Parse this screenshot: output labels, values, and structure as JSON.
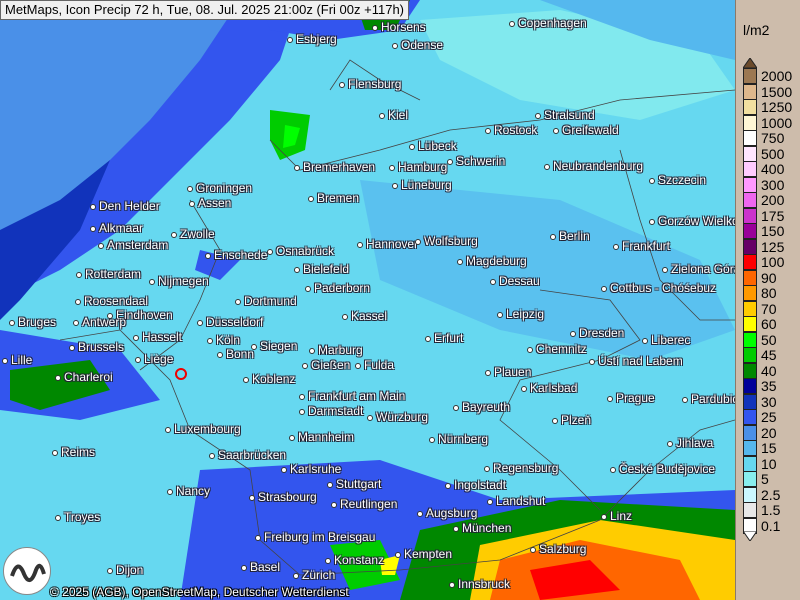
{
  "title": "MetMaps, Icon Precip 72 h, Tue, 08. Jul. 2025 21:00z (Fri 00z +117h)",
  "copyright": "© 2025 (AGB), OpenStreetMap, Deutscher Wetterdienst",
  "logo_text": "METMAPS",
  "legend": {
    "unit": "l/m2",
    "levels": [
      {
        "label": "2000",
        "color": "#9c7852"
      },
      {
        "label": "1500",
        "color": "#dfb88c"
      },
      {
        "label": "1250",
        "color": "#f2dfa0"
      },
      {
        "label": "1000",
        "color": "#fff6d6"
      },
      {
        "label": "750",
        "color": "#ffffff"
      },
      {
        "label": "500",
        "color": "#ffe6ff"
      },
      {
        "label": "400",
        "color": "#ffccff"
      },
      {
        "label": "300",
        "color": "#ff99ff"
      },
      {
        "label": "200",
        "color": "#ee66ee"
      },
      {
        "label": "175",
        "color": "#cc33cc"
      },
      {
        "label": "150",
        "color": "#990099"
      },
      {
        "label": "125",
        "color": "#660066"
      },
      {
        "label": "100",
        "color": "#ff0000"
      },
      {
        "label": "90",
        "color": "#ff6600"
      },
      {
        "label": "80",
        "color": "#ff9900"
      },
      {
        "label": "70",
        "color": "#ffcc00"
      },
      {
        "label": "60",
        "color": "#ffff00"
      },
      {
        "label": "50",
        "color": "#00ff00"
      },
      {
        "label": "45",
        "color": "#00cc00"
      },
      {
        "label": "40",
        "color": "#008800"
      },
      {
        "label": "35",
        "color": "#000099"
      },
      {
        "label": "30",
        "color": "#1133bb"
      },
      {
        "label": "25",
        "color": "#3355ee"
      },
      {
        "label": "20",
        "color": "#4a90e8"
      },
      {
        "label": "15",
        "color": "#55b8ee"
      },
      {
        "label": "10",
        "color": "#66d8f0"
      },
      {
        "label": "5",
        "color": "#88eeee"
      },
      {
        "label": "2.5",
        "color": "#ccf8ff"
      },
      {
        "label": "1.5",
        "color": "#e8e8e8"
      },
      {
        "label": "0.1",
        "color": "#ffffff"
      }
    ]
  },
  "cities": [
    "Horsens",
    "Copenhagen",
    "Esbjerg",
    "Odense",
    "Flensburg",
    "Kiel",
    "Stralsund",
    "Greifswald",
    "Rostock",
    "Lübeck",
    "Schwerin",
    "Bremerhaven",
    "Hamburg",
    "Neubrandenburg",
    "Szczecin",
    "Lüneburg",
    "Groningen",
    "Bremen",
    "Assen",
    "Den Helder",
    "Gorzów Wielkopolski",
    "Alkmaar",
    "Berlin",
    "Zwolle",
    "Amsterdam",
    "Hannover",
    "Wolfsburg",
    "Frankfurt",
    "Osnabrück",
    "Enschede",
    "Magdeburg",
    "Bielefeld",
    "Rotterdam",
    "Zielona Góra",
    "Nijmegen",
    "Dessau",
    "Cottbus - Chóśebuz",
    "Paderborn",
    "Roosendaal",
    "Dortmund",
    "Eindhoven",
    "Bruges",
    "Antwerp",
    "Düsseldorf",
    "Kassel",
    "Leipzig",
    "Dresden",
    "Köln",
    "Hasselt",
    "Erfurt",
    "Brussels",
    "Siegen",
    "Marburg",
    "Chemnitz",
    "Liberec",
    "Bonn",
    "Liège",
    "Lille",
    "Gießen",
    "Fulda",
    "Ústí nad Labem",
    "Plauen",
    "Charleroi",
    "Koblenz",
    "Karlsbad",
    "Frankfurt am Main",
    "Prague",
    "Pardubice",
    "Bayreuth",
    "Darmstadt",
    "Würzburg",
    "Plzeň",
    "Luxembourg",
    "Mannheim",
    "Nürnberg",
    "Jihlava",
    "Reims",
    "Saarbrücken",
    "Regensburg",
    "České Budějovice",
    "Karlsruhe",
    "Stuttgart",
    "Ingolstadt",
    "Nancy",
    "Strasbourg",
    "Landshut",
    "Reutlingen",
    "Augsburg",
    "Linz",
    "Troyes",
    "München",
    "Freiburg im Breisgau",
    "Salzburg",
    "Kempten",
    "Konstanz",
    "Basel",
    "Zürich",
    "Innsbruck",
    "Dijon"
  ]
}
